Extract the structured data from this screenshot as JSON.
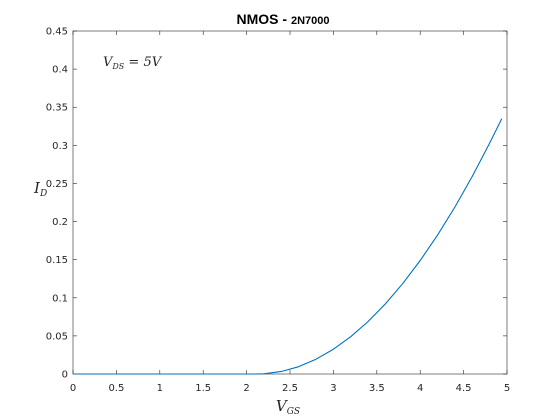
{
  "chart_data": {
    "type": "line",
    "title_main": "NMOS - ",
    "title_part": "2N7000",
    "xlabel_base": "V",
    "xlabel_sub": "GS",
    "ylabel_base": "I",
    "ylabel_sub": "D",
    "annotation_base": "V",
    "annotation_sub": "DS",
    "annotation_rest": " = 5V",
    "xlim": [
      0,
      5
    ],
    "ylim": [
      0,
      0.45
    ],
    "xticks": [
      0,
      0.5,
      1,
      1.5,
      2,
      2.5,
      3,
      3.5,
      4,
      4.5,
      5
    ],
    "xtick_labels": [
      "0",
      "0.5",
      "1",
      "1.5",
      "2",
      "2.5",
      "3",
      "3.5",
      "4",
      "4.5",
      "5"
    ],
    "yticks": [
      0,
      0.05,
      0.1,
      0.15,
      0.2,
      0.25,
      0.3,
      0.35,
      0.4,
      0.45
    ],
    "ytick_labels": [
      "0",
      "0.05",
      "0.1",
      "0.15",
      "0.2",
      "0.25",
      "0.3",
      "0.35",
      "0.4",
      "0.45"
    ],
    "grid": false,
    "series": [
      {
        "color": "#0072bd",
        "x": [
          0,
          0.5,
          1,
          1.5,
          2,
          2.1,
          2.2,
          2.4,
          2.6,
          2.8,
          3.0,
          3.2,
          3.4,
          3.6,
          3.8,
          4.0,
          4.2,
          4.4,
          4.6,
          4.8,
          4.94
        ],
        "y": [
          0,
          0,
          0,
          0,
          0,
          0,
          0.0003,
          0.0033,
          0.0096,
          0.0194,
          0.0325,
          0.049,
          0.0689,
          0.0922,
          0.1188,
          0.1489,
          0.1823,
          0.2191,
          0.2593,
          0.3029,
          0.335
        ]
      }
    ]
  }
}
